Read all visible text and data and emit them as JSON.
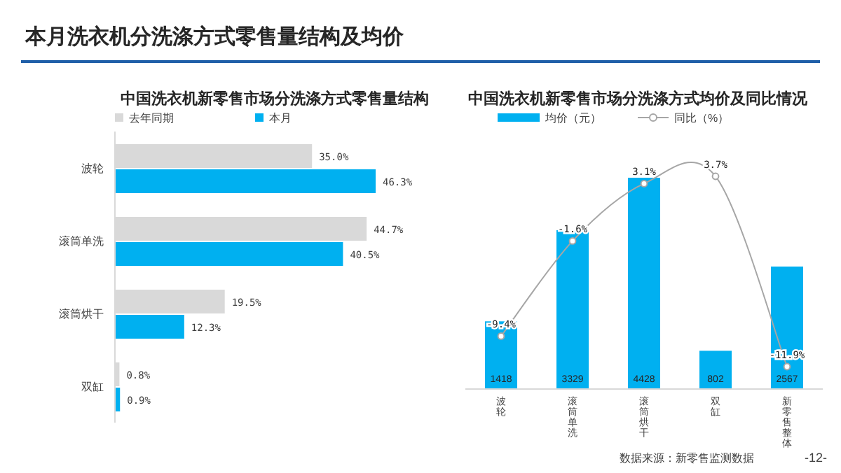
{
  "chart_data": [
    {
      "type": "bar",
      "orientation": "horizontal",
      "title": "本月洗衣机分洗涤方式零售量结构及均价",
      "subtitle": "中国洗衣机新零售市场分洗涤方式零售量结构",
      "categories": [
        "波轮",
        "滚筒单洗",
        "滚筒烘干",
        "双缸"
      ],
      "tick_labels": "y",
      "legend": "top",
      "series": [
        {
          "name": "去年同期",
          "color": "#d9d9d9",
          "values": [
            35.0,
            44.7,
            19.5,
            0.8
          ],
          "value_labels": [
            "35.0%",
            "44.7%",
            "19.5%",
            "0.8%"
          ]
        },
        {
          "name": "本月",
          "color": "#00b0f0",
          "values": [
            46.3,
            40.5,
            12.3,
            0.9
          ],
          "value_labels": [
            "46.3%",
            "40.5%",
            "12.3%",
            "0.9%"
          ]
        }
      ]
    },
    {
      "type": "bar",
      "title": "中国洗衣机新零售市场分洗涤方式均价及同比情况",
      "categories": [
        "波轮",
        "滚筒单洗",
        "滚筒烘干",
        "双缸",
        "新零售整体"
      ],
      "tick_labels": "x",
      "legend": "top",
      "annotations": [
        "数据来源：新零售监测数据",
        "-12-"
      ],
      "series": [
        {
          "name": "均价（元）",
          "type": "bar",
          "color": "#00b0f0",
          "values": [
            1418,
            3329,
            4428,
            802,
            2567
          ],
          "data_labels": true
        },
        {
          "name": "同比（%）",
          "type": "line",
          "axis": "y2",
          "color": "#a6a6a6",
          "marker": "circle",
          "line_style": "solid",
          "values": [
            -9.4,
            -1.6,
            3.1,
            3.7,
            -11.9
          ],
          "value_labels": [
            "-9.4%",
            "-1.6%",
            "3.1%",
            "3.7%",
            "-11.9%"
          ]
        }
      ]
    }
  ]
}
